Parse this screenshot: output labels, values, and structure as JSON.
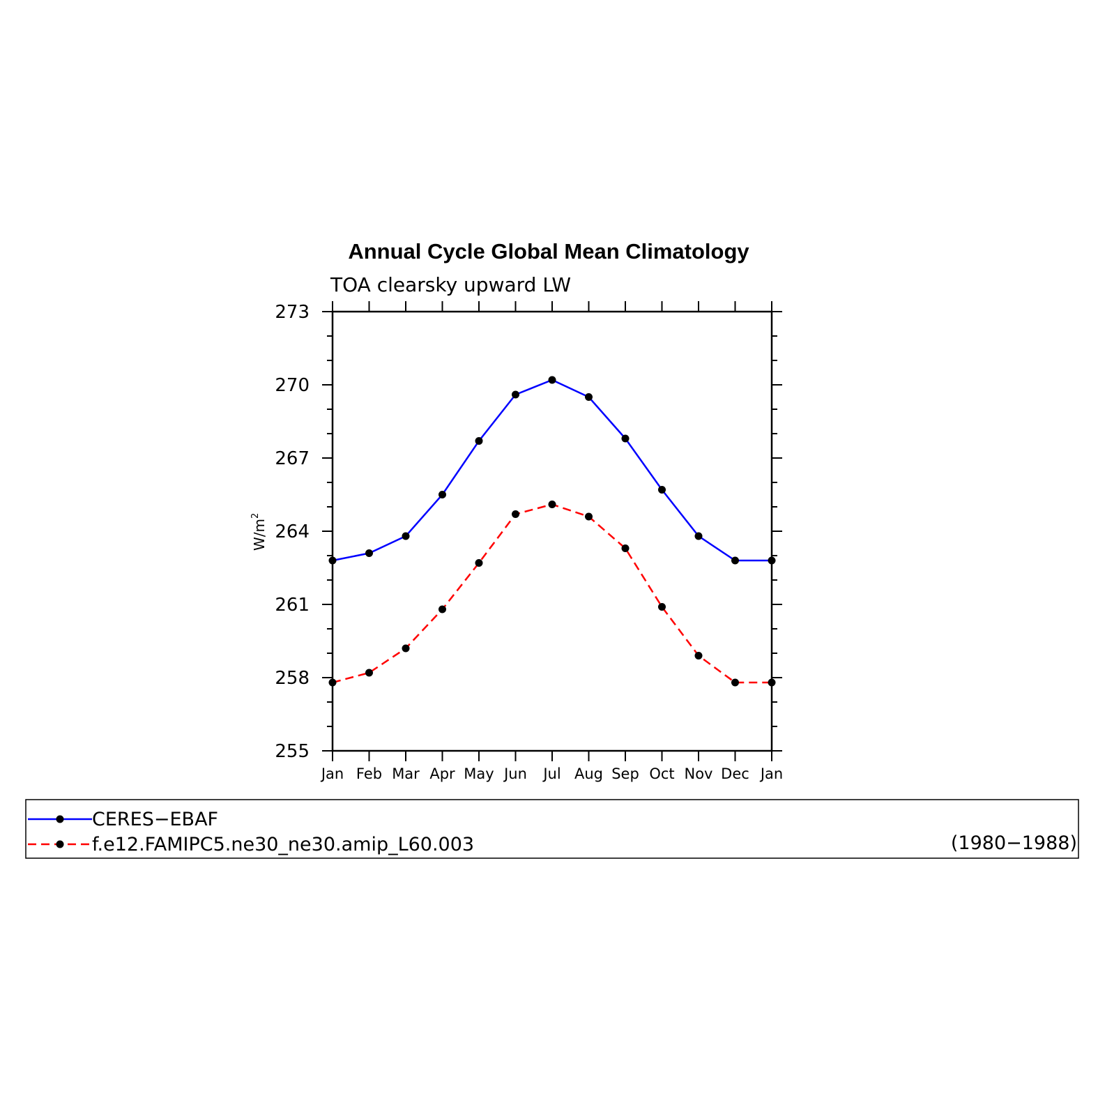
{
  "chart_data": {
    "type": "line",
    "title": "Annual Cycle Global Mean Climatology",
    "subtitle": "TOA clearsky upward LW",
    "ylabel_main": "W/m",
    "ylabel_sup": "2",
    "ylim": [
      255,
      273
    ],
    "yticks": [
      255,
      258,
      261,
      264,
      267,
      270,
      273
    ],
    "categories": [
      "Jan",
      "Feb",
      "Mar",
      "Apr",
      "May",
      "Jun",
      "Jul",
      "Aug",
      "Sep",
      "Oct",
      "Nov",
      "Dec",
      "Jan"
    ],
    "series": [
      {
        "name": "CERES−EBAF",
        "color": "#0000ff",
        "dash": "solid",
        "values": [
          262.8,
          263.1,
          263.8,
          265.5,
          267.7,
          269.6,
          270.2,
          269.5,
          267.8,
          265.7,
          263.8,
          262.8,
          262.8
        ]
      },
      {
        "name": "f.e12.FAMIPC5.ne30_ne30.amip_L60.003",
        "color": "#ff0000",
        "dash": "dashed",
        "values": [
          257.8,
          258.2,
          259.2,
          260.8,
          262.7,
          264.7,
          265.1,
          264.6,
          263.3,
          260.9,
          258.9,
          257.8,
          257.8
        ]
      }
    ],
    "legend_note": "(1980−1988)",
    "marker_color": "#000000",
    "grid": false,
    "legend_placement": "bottom"
  }
}
